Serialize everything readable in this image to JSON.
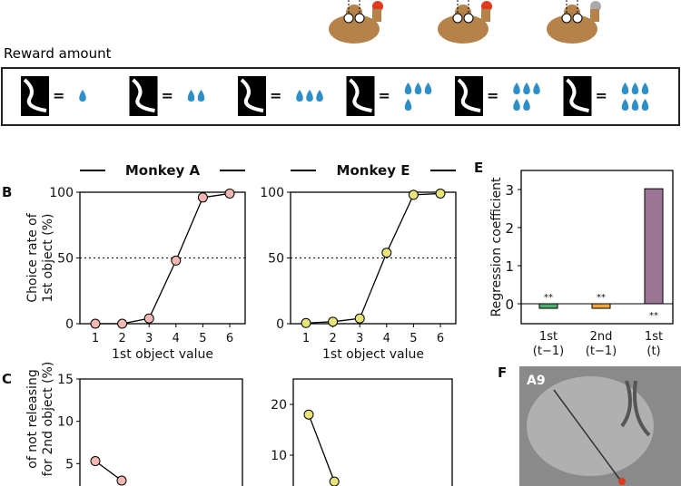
{
  "reward": {
    "title": "Reward amount",
    "equals": "=",
    "drops": [
      1,
      2,
      3,
      4,
      5,
      6
    ]
  },
  "colors": {
    "monkeyA": "#f4b8b4",
    "monkeyE": "#e8e47a",
    "drop": "#2e8fc8",
    "monkey": "#b5834a",
    "bar1": "#4caf6e",
    "bar2": "#f2a53a",
    "bar3": "#9b7595",
    "target_red": "#e03a1e"
  },
  "panels": {
    "B": "B",
    "C": "C",
    "E": "E",
    "F": "F",
    "mri_label": "A9"
  },
  "chart_data": [
    {
      "type": "line",
      "panel": "B",
      "title": "Monkey A",
      "xlabel": "1st object value",
      "ylabel": "Choice rate of\n1st object (%)",
      "x": [
        1,
        2,
        3,
        4,
        5,
        6
      ],
      "y": [
        0,
        0,
        4,
        48,
        96,
        99
      ],
      "ylim": [
        0,
        100
      ],
      "yticks": [
        0,
        50,
        100
      ],
      "reference_line": 50
    },
    {
      "type": "line",
      "panel": "B",
      "title": "Monkey E",
      "xlabel": "1st object value",
      "x": [
        1,
        2,
        3,
        4,
        5,
        6
      ],
      "y": [
        0.5,
        1.5,
        4,
        54,
        98,
        99
      ],
      "ylim": [
        0,
        100
      ],
      "yticks": [
        0,
        50,
        100
      ],
      "reference_line": 50
    },
    {
      "type": "bar",
      "panel": "E",
      "ylabel": "Regression coefficient",
      "categories": [
        [
          "1st",
          "(t−1)"
        ],
        [
          "2nd",
          "(t−1)"
        ],
        [
          "1st",
          "(t)"
        ]
      ],
      "values": [
        -0.12,
        -0.12,
        3.02
      ],
      "annotations": [
        "**",
        "**",
        "**"
      ],
      "ylim": [
        -0.5,
        3.5
      ],
      "yticks": [
        0,
        1,
        2,
        3
      ]
    },
    {
      "type": "line",
      "panel": "C",
      "ylabel": "of not releasing\nfor 2nd object (%)",
      "x": [
        1,
        2
      ],
      "y": [
        5.3,
        3
      ],
      "ylim": [
        0,
        15
      ],
      "yticks": [
        5,
        10,
        15
      ]
    },
    {
      "type": "line",
      "panel": "C",
      "x": [
        1,
        2
      ],
      "y": [
        18,
        4.8
      ],
      "ylim": [
        0,
        25
      ],
      "yticks": [
        10,
        20
      ]
    }
  ]
}
